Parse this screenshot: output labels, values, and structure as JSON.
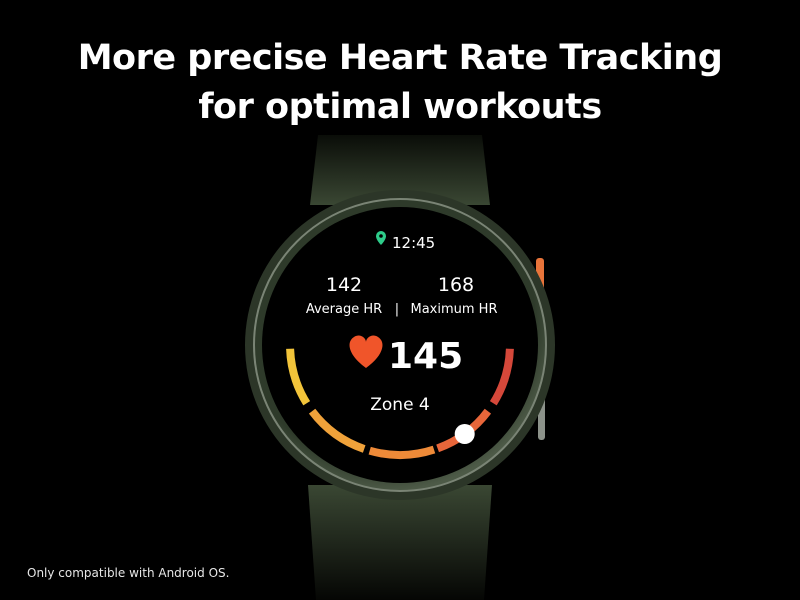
{
  "headline": {
    "line1": "More precise Heart Rate Tracking",
    "line2": "for optimal workouts"
  },
  "footnote": "Only compatible with Android OS.",
  "watch": {
    "time": "12:45",
    "location_icon": "location-pin-icon",
    "average_hr_value": "142",
    "average_hr_label": "Average HR",
    "separator": "|",
    "maximum_hr_value": "168",
    "maximum_hr_label": "Maximum HR",
    "heart_icon": "heart-icon",
    "current_hr": "145",
    "zone_label": "Zone 4",
    "zone_count": 5,
    "current_zone": 4,
    "colors": {
      "pin": "#2ecc8a",
      "heart": "#f0552a",
      "zone_text": "#e8613a",
      "zones": [
        "#f2c43a",
        "#f0a23a",
        "#ee8a38",
        "#e8663a",
        "#d5483a"
      ],
      "strap": "#3c4a35",
      "side_button": "#e8743a"
    }
  }
}
